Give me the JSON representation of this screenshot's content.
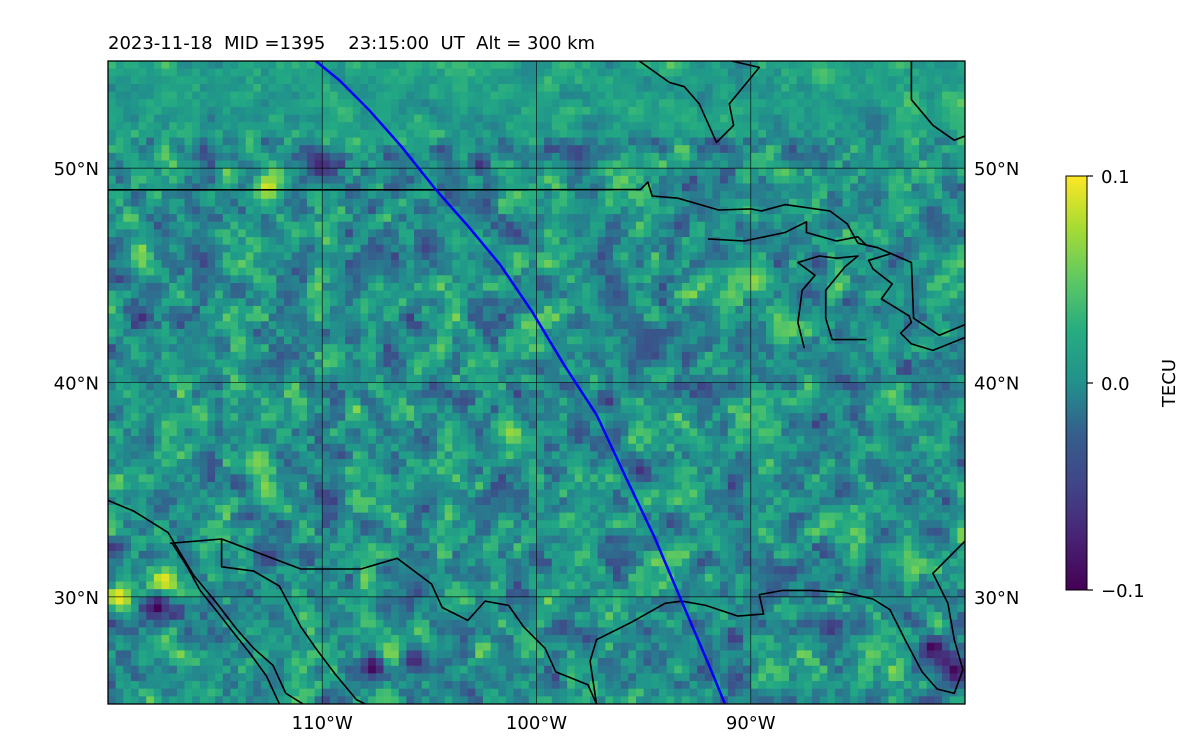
{
  "chart_data": {
    "type": "heatmap",
    "title": "2023-11-18  MID =1395    23:15:00  UT  Alt = 300 km",
    "projection": "equirectangular map",
    "lon_range": [
      -120,
      -80
    ],
    "lat_range": [
      25,
      55
    ],
    "lon_ticks": [
      -110,
      -100,
      -90
    ],
    "lat_ticks": [
      30,
      40,
      50
    ],
    "lon_tick_labels": [
      "110°W",
      "100°W",
      "90°W"
    ],
    "lat_tick_labels": [
      "30°N",
      "40°N",
      "50°N"
    ],
    "grid": true,
    "colormap": "viridis",
    "colorbar": {
      "label": "TECU",
      "vmin": -0.1,
      "vmax": 0.1,
      "ticks": [
        0.1,
        0.0,
        -0.1
      ],
      "tick_labels": [
        "0.1",
        "0.0",
        "−0.1"
      ]
    },
    "track": {
      "color": "#0000ff",
      "points": [
        [
          -110.3,
          55
        ],
        [
          -109.2,
          54.1
        ],
        [
          -107.8,
          52.7
        ],
        [
          -106.3,
          51.0
        ],
        [
          -104.7,
          49.0
        ],
        [
          -103.2,
          47.3
        ],
        [
          -101.7,
          45.5
        ],
        [
          -100.2,
          43.3
        ],
        [
          -98.7,
          40.8
        ],
        [
          -97.2,
          38.5
        ],
        [
          -95.8,
          35.5
        ],
        [
          -94.5,
          32.8
        ],
        [
          -93.1,
          29.5
        ],
        [
          -91.9,
          26.7
        ],
        [
          -91.2,
          25
        ]
      ]
    },
    "hotspots": [
      {
        "lon": -117.3,
        "lat": 30.5,
        "value": 0.1
      },
      {
        "lon": -119.5,
        "lat": 29.8,
        "value": 0.1
      },
      {
        "lon": -112.5,
        "lat": 49.0,
        "value": 0.09
      },
      {
        "lon": -106.8,
        "lat": 27.0,
        "value": 0.1
      },
      {
        "lon": -101.0,
        "lat": 37.5,
        "value": 0.07
      },
      {
        "lon": -113.0,
        "lat": 36.0,
        "value": 0.06
      },
      {
        "lon": -89.6,
        "lat": 44.6,
        "value": 0.07
      },
      {
        "lon": -117.7,
        "lat": 29.3,
        "value": -0.1
      },
      {
        "lon": -107.5,
        "lat": 26.5,
        "value": -0.1
      },
      {
        "lon": -110.0,
        "lat": 50.0,
        "value": -0.08
      },
      {
        "lon": -81.2,
        "lat": 27.4,
        "value": -0.1
      },
      {
        "lon": -80.1,
        "lat": 26.3,
        "value": -0.1
      },
      {
        "lon": -105.6,
        "lat": 26.8,
        "value": -0.08
      },
      {
        "lon": -105.0,
        "lat": 46.2,
        "value": -0.06
      },
      {
        "lon": -96.0,
        "lat": 44.0,
        "value": -0.05
      },
      {
        "lon": -94.7,
        "lat": 41.5,
        "value": -0.05
      }
    ],
    "coastlines": [
      [
        [
          -104.0,
          48.99
        ],
        [
          -95.15,
          49.0
        ],
        [
          -94.8,
          49.35
        ],
        [
          -94.6,
          48.7
        ],
        [
          -93.4,
          48.6
        ],
        [
          -91.5,
          48.05
        ],
        [
          -90.0,
          48.1
        ],
        [
          -89.5,
          48.0
        ],
        [
          -88.4,
          48.3
        ],
        [
          -86.3,
          48.0
        ],
        [
          -85.5,
          47.4
        ],
        [
          -85.0,
          46.5
        ],
        [
          -84.1,
          46.3
        ],
        [
          -82.5,
          45.6
        ],
        [
          -82.4,
          43.0
        ],
        [
          -81.2,
          42.2
        ],
        [
          -80.0,
          42.7
        ]
      ],
      [
        [
          -120,
          48.99
        ],
        [
          -104.0,
          48.99
        ]
      ],
      [
        [
          -92.0,
          46.7
        ],
        [
          -90.3,
          46.6
        ],
        [
          -88.4,
          47.0
        ],
        [
          -87.4,
          47.5
        ],
        [
          -87.4,
          47.0
        ],
        [
          -86.0,
          46.6
        ],
        [
          -85.0,
          46.8
        ],
        [
          -84.6,
          46.4
        ],
        [
          -84.1,
          46.3
        ]
      ],
      [
        [
          -87.5,
          41.6
        ],
        [
          -87.8,
          42.8
        ],
        [
          -87.6,
          44.3
        ],
        [
          -87.0,
          45.0
        ],
        [
          -87.8,
          45.6
        ],
        [
          -86.8,
          45.9
        ],
        [
          -86.0,
          45.8
        ],
        [
          -85.0,
          45.9
        ],
        [
          -85.6,
          45.4
        ],
        [
          -86.5,
          44.3
        ],
        [
          -86.5,
          43.0
        ],
        [
          -86.2,
          42.0
        ],
        [
          -84.8,
          42.0
        ],
        [
          -84.6,
          42.0
        ]
      ],
      [
        [
          -83.5,
          46.0
        ],
        [
          -84.5,
          45.7
        ],
        [
          -84.3,
          45.3
        ],
        [
          -83.4,
          44.6
        ],
        [
          -83.9,
          43.9
        ],
        [
          -82.6,
          43.1
        ],
        [
          -82.5,
          42.8
        ],
        [
          -83.0,
          42.3
        ],
        [
          -82.5,
          41.8
        ],
        [
          -81.5,
          41.5
        ],
        [
          -80.0,
          42.1
        ]
      ],
      [
        [
          -95.2,
          55.0
        ],
        [
          -93.8,
          54.0
        ],
        [
          -93.1,
          53.8
        ],
        [
          -92.4,
          53.0
        ],
        [
          -91.6,
          51.2
        ],
        [
          -90.8,
          52.0
        ],
        [
          -91.0,
          53.0
        ],
        [
          -89.6,
          54.7
        ],
        [
          -90.9,
          55.0
        ]
      ],
      [
        [
          -82.5,
          55.0
        ],
        [
          -82.5,
          53.2
        ],
        [
          -81.5,
          52.0
        ],
        [
          -80.5,
          51.3
        ],
        [
          -80.0,
          51.5
        ]
      ],
      [
        [
          -97.2,
          25.0
        ],
        [
          -97.5,
          27.0
        ],
        [
          -97.2,
          28.0
        ],
        [
          -95.6,
          28.8
        ],
        [
          -94.0,
          29.7
        ],
        [
          -93.2,
          29.8
        ],
        [
          -92.1,
          29.6
        ],
        [
          -90.6,
          29.1
        ],
        [
          -89.4,
          29.2
        ],
        [
          -89.6,
          30.1
        ],
        [
          -88.5,
          30.3
        ],
        [
          -87.2,
          30.3
        ],
        [
          -85.6,
          30.2
        ],
        [
          -84.3,
          29.9
        ],
        [
          -83.5,
          29.4
        ],
        [
          -82.8,
          28.0
        ],
        [
          -82.0,
          26.5
        ],
        [
          -81.3,
          25.7
        ],
        [
          -80.5,
          25.5
        ],
        [
          -80.1,
          26.6
        ],
        [
          -80.5,
          28.0
        ],
        [
          -80.8,
          29.7
        ],
        [
          -81.5,
          31.1
        ],
        [
          -80.0,
          32.6
        ]
      ],
      [
        [
          -120.0,
          34.5
        ],
        [
          -118.8,
          34.0
        ],
        [
          -117.2,
          33.0
        ],
        [
          -116.0,
          31.0
        ],
        [
          -115.0,
          29.8
        ],
        [
          -114.0,
          28.5
        ],
        [
          -113.2,
          27.6
        ],
        [
          -112.3,
          26.8
        ],
        [
          -111.7,
          25.5
        ],
        [
          -110.9,
          25.0
        ]
      ],
      [
        [
          -114.7,
          32.7
        ],
        [
          -114.7,
          31.4
        ],
        [
          -113.2,
          31.2
        ],
        [
          -112.0,
          30.5
        ],
        [
          -111.0,
          28.6
        ],
        [
          -110.3,
          27.6
        ],
        [
          -109.4,
          26.4
        ],
        [
          -108.4,
          25.2
        ],
        [
          -108.0,
          25.0
        ]
      ],
      [
        [
          -117.1,
          32.5
        ],
        [
          -114.7,
          32.7
        ],
        [
          -111.0,
          31.3
        ],
        [
          -108.2,
          31.3
        ],
        [
          -106.5,
          31.8
        ],
        [
          -104.9,
          30.6
        ],
        [
          -104.4,
          29.5
        ],
        [
          -103.2,
          28.9
        ],
        [
          -102.4,
          29.8
        ],
        [
          -101.3,
          29.6
        ],
        [
          -100.6,
          28.6
        ],
        [
          -99.6,
          27.6
        ],
        [
          -99.1,
          26.5
        ],
        [
          -97.6,
          25.9
        ],
        [
          -97.2,
          25.0
        ]
      ],
      [
        [
          -117.0,
          32.5
        ],
        [
          -116.3,
          31.4
        ],
        [
          -115.7,
          30.3
        ],
        [
          -114.9,
          29.3
        ],
        [
          -114.2,
          28.4
        ],
        [
          -113.4,
          27.4
        ],
        [
          -112.6,
          26.3
        ],
        [
          -112.0,
          25.0
        ]
      ]
    ]
  }
}
